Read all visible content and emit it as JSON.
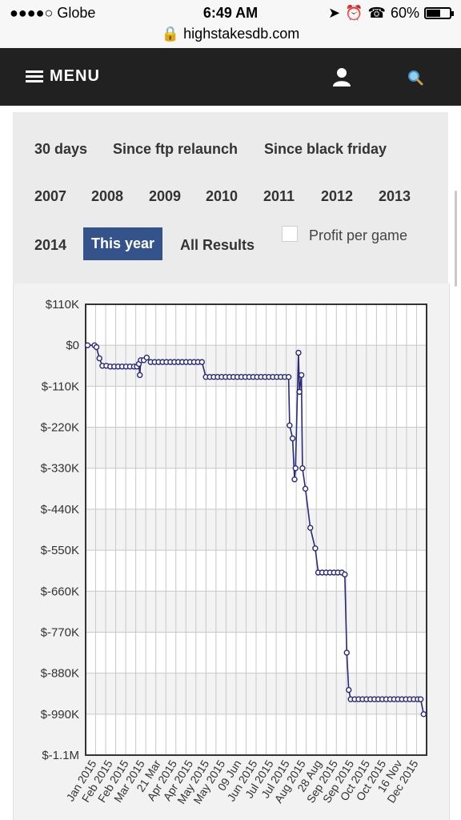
{
  "status_bar": {
    "carrier": "●●●●○ Globe",
    "time": "6:49 AM",
    "battery_percent": "60%",
    "battery_level": 0.6,
    "url": "highstakesdb.com"
  },
  "nav": {
    "menu_label": "MENU",
    "user_icon": "user-icon",
    "search_icon": "search-icon"
  },
  "filters": {
    "row1": [
      "30 days",
      "Since ftp relaunch",
      "Since black friday"
    ],
    "years": [
      "2007",
      "2008",
      "2009",
      "2010",
      "2011",
      "2012",
      "2013",
      "2014"
    ],
    "this_year": "This year",
    "all_results": "All Results",
    "profit_per_game": "Profit per game",
    "profit_per_game_checked": false,
    "accent_color": "#33538a"
  },
  "chart_data": {
    "type": "line",
    "title": "",
    "xlabel": "",
    "ylabel": "",
    "ylim": [
      -1100000,
      110000
    ],
    "yticks": [
      110000,
      0,
      -110000,
      -220000,
      -330000,
      -440000,
      -550000,
      -660000,
      -770000,
      -880000,
      -990000,
      -1100000
    ],
    "ytick_labels": [
      "$110K",
      "$0",
      "$-110K",
      "$-220K",
      "$-330K",
      "$-440K",
      "$-550K",
      "$-660K",
      "$-770K",
      "$-880K",
      "$-990K",
      "$-1.1M"
    ],
    "xtick_labels": [
      "Jan 2015",
      "Feb 2015",
      "Feb 2015",
      "Mar 2015",
      "21 Mar",
      "Apr 2015",
      "Apr 2015",
      "May 2015",
      "May 2015",
      "09 Jun",
      "Jun 2015",
      "Jul 2015",
      "Jul 2015",
      "Aug 2015",
      "28 Aug",
      "Sep 2015",
      "Sep 2015",
      "Oct 2015",
      "Oct 2015",
      "16 Nov",
      "Dec 2015"
    ],
    "grid": true,
    "line_color": "#2a2a7a",
    "series": [
      {
        "values": [
          [
            0.2,
            0
          ],
          [
            0.9,
            0
          ],
          [
            1.1,
            -5000
          ],
          [
            1.4,
            -35000
          ],
          [
            1.7,
            -55000
          ],
          [
            2.1,
            -55000
          ],
          [
            2.5,
            -57000
          ],
          [
            2.9,
            -57000
          ],
          [
            3.3,
            -57000
          ],
          [
            3.7,
            -57000
          ],
          [
            4.1,
            -57000
          ],
          [
            4.5,
            -57000
          ],
          [
            4.9,
            -57000
          ],
          [
            5.2,
            -57000
          ],
          [
            5.4,
            -50000
          ],
          [
            5.5,
            -80000
          ],
          [
            5.6,
            -40000
          ],
          [
            5.9,
            -40000
          ],
          [
            6.2,
            -33000
          ],
          [
            6.6,
            -45000
          ],
          [
            7.0,
            -45000
          ],
          [
            7.4,
            -45000
          ],
          [
            7.8,
            -45000
          ],
          [
            8.2,
            -45000
          ],
          [
            8.6,
            -45000
          ],
          [
            9.0,
            -45000
          ],
          [
            9.4,
            -45000
          ],
          [
            9.8,
            -45000
          ],
          [
            10.2,
            -45000
          ],
          [
            10.6,
            -45000
          ],
          [
            11.0,
            -45000
          ],
          [
            11.4,
            -45000
          ],
          [
            11.8,
            -45000
          ],
          [
            12.2,
            -85000
          ],
          [
            12.6,
            -85000
          ],
          [
            13.0,
            -85000
          ],
          [
            13.4,
            -85000
          ],
          [
            13.8,
            -85000
          ],
          [
            14.2,
            -85000
          ],
          [
            14.6,
            -85000
          ],
          [
            15.0,
            -85000
          ],
          [
            15.4,
            -85000
          ],
          [
            15.8,
            -85000
          ],
          [
            16.2,
            -85000
          ],
          [
            16.6,
            -85000
          ],
          [
            17.0,
            -85000
          ],
          [
            17.4,
            -85000
          ],
          [
            17.8,
            -85000
          ],
          [
            18.2,
            -85000
          ],
          [
            18.6,
            -85000
          ],
          [
            19.0,
            -85000
          ],
          [
            19.4,
            -85000
          ],
          [
            19.8,
            -85000
          ],
          [
            20.2,
            -85000
          ],
          [
            20.6,
            -85000
          ],
          [
            20.7,
            -215000
          ],
          [
            21.0,
            -250000
          ],
          [
            21.2,
            -360000
          ],
          [
            21.3,
            -330000
          ],
          [
            21.6,
            -20000
          ],
          [
            21.7,
            -125000
          ],
          [
            21.9,
            -80000
          ],
          [
            22.0,
            -330000
          ],
          [
            22.3,
            -385000
          ],
          [
            22.8,
            -490000
          ],
          [
            23.3,
            -545000
          ],
          [
            23.6,
            -610000
          ],
          [
            24.0,
            -610000
          ],
          [
            24.4,
            -610000
          ],
          [
            24.8,
            -610000
          ],
          [
            25.2,
            -610000
          ],
          [
            25.6,
            -610000
          ],
          [
            26.0,
            -610000
          ],
          [
            26.3,
            -615000
          ],
          [
            26.5,
            -825000
          ],
          [
            26.7,
            -925000
          ],
          [
            26.9,
            -950000
          ],
          [
            27.3,
            -950000
          ],
          [
            27.7,
            -950000
          ],
          [
            28.1,
            -950000
          ],
          [
            28.5,
            -950000
          ],
          [
            28.9,
            -950000
          ],
          [
            29.3,
            -950000
          ],
          [
            29.7,
            -950000
          ],
          [
            30.1,
            -950000
          ],
          [
            30.5,
            -950000
          ],
          [
            30.9,
            -950000
          ],
          [
            31.3,
            -950000
          ],
          [
            31.7,
            -950000
          ],
          [
            32.1,
            -950000
          ],
          [
            32.5,
            -950000
          ],
          [
            32.9,
            -950000
          ],
          [
            33.3,
            -950000
          ],
          [
            33.7,
            -950000
          ],
          [
            34.0,
            -950000
          ],
          [
            34.3,
            -990000
          ]
        ]
      }
    ]
  }
}
